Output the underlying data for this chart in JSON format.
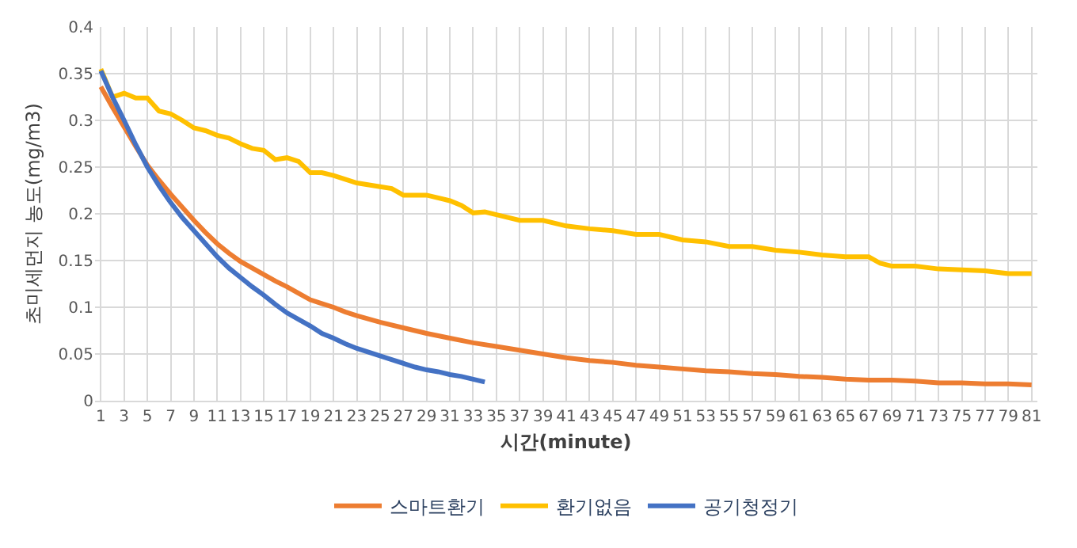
{
  "chart_data": {
    "type": "line",
    "xlabel": "시간(minute)",
    "ylabel": "초미세먼지 농도(mg/m3)",
    "xlim": [
      0.5,
      81.5
    ],
    "xticks": [
      1,
      3,
      5,
      7,
      9,
      11,
      13,
      15,
      17,
      19,
      21,
      23,
      25,
      27,
      29,
      31,
      33,
      35,
      37,
      39,
      41,
      43,
      45,
      47,
      49,
      51,
      53,
      55,
      57,
      59,
      61,
      63,
      65,
      67,
      69,
      71,
      73,
      75,
      77,
      79,
      81
    ],
    "ylim": [
      0,
      0.4
    ],
    "yticks": [
      0,
      0.05,
      0.1,
      0.15,
      0.2,
      0.25,
      0.3,
      0.35,
      0.4
    ],
    "grid": true,
    "legend": "bottom",
    "marker": "none",
    "line_style": "solid",
    "series": [
      {
        "name": "스마트환기",
        "color": "#ed7d31",
        "x": [
          1,
          2,
          3,
          4,
          5,
          6,
          7,
          8,
          9,
          10,
          11,
          12,
          13,
          14,
          15,
          16,
          17,
          18,
          19,
          20,
          21,
          22,
          23,
          25,
          27,
          29,
          31,
          33,
          35,
          37,
          39,
          41,
          43,
          45,
          47,
          49,
          51,
          53,
          55,
          57,
          59,
          61,
          63,
          65,
          67,
          69,
          71,
          73,
          75,
          77,
          79,
          81
        ],
        "values": [
          0.336,
          0.314,
          0.293,
          0.272,
          0.252,
          0.236,
          0.221,
          0.207,
          0.193,
          0.18,
          0.168,
          0.158,
          0.149,
          0.142,
          0.135,
          0.128,
          0.122,
          0.115,
          0.108,
          0.104,
          0.1,
          0.095,
          0.091,
          0.084,
          0.078,
          0.072,
          0.067,
          0.062,
          0.058,
          0.054,
          0.05,
          0.046,
          0.043,
          0.041,
          0.038,
          0.036,
          0.034,
          0.032,
          0.031,
          0.029,
          0.028,
          0.026,
          0.025,
          0.023,
          0.022,
          0.022,
          0.021,
          0.019,
          0.019,
          0.018,
          0.018,
          0.017
        ]
      },
      {
        "name": "환기없음",
        "color": "#ffc000",
        "x": [
          1,
          2,
          3,
          4,
          5,
          6,
          7,
          8,
          9,
          10,
          11,
          12,
          13,
          14,
          15,
          16,
          17,
          18,
          19,
          20,
          21,
          22,
          23,
          25,
          26,
          27,
          29,
          31,
          32,
          33,
          34,
          35,
          37,
          39,
          41,
          43,
          45,
          47,
          49,
          51,
          53,
          55,
          57,
          59,
          61,
          63,
          65,
          67,
          68,
          69,
          71,
          73,
          75,
          77,
          79,
          81
        ],
        "values": [
          0.355,
          0.325,
          0.329,
          0.324,
          0.324,
          0.31,
          0.307,
          0.3,
          0.292,
          0.289,
          0.284,
          0.281,
          0.275,
          0.27,
          0.268,
          0.258,
          0.26,
          0.256,
          0.244,
          0.244,
          0.241,
          0.237,
          0.233,
          0.229,
          0.227,
          0.22,
          0.22,
          0.214,
          0.209,
          0.201,
          0.202,
          0.199,
          0.193,
          0.193,
          0.187,
          0.184,
          0.182,
          0.178,
          0.178,
          0.172,
          0.17,
          0.165,
          0.165,
          0.161,
          0.159,
          0.156,
          0.154,
          0.154,
          0.147,
          0.144,
          0.144,
          0.141,
          0.14,
          0.139,
          0.136,
          0.136
        ]
      },
      {
        "name": "공기청정기",
        "color": "#4472c4",
        "x": [
          1,
          2,
          3,
          4,
          5,
          6,
          7,
          8,
          9,
          10,
          11,
          12,
          13,
          14,
          15,
          16,
          17,
          18,
          19,
          20,
          21,
          22,
          23,
          24,
          25,
          26,
          27,
          28,
          29,
          30,
          31,
          32,
          33,
          34
        ],
        "values": [
          0.353,
          0.325,
          0.3,
          0.274,
          0.25,
          0.23,
          0.212,
          0.196,
          0.182,
          0.168,
          0.154,
          0.142,
          0.132,
          0.122,
          0.113,
          0.103,
          0.094,
          0.087,
          0.08,
          0.072,
          0.067,
          0.061,
          0.056,
          0.052,
          0.048,
          0.044,
          0.04,
          0.036,
          0.033,
          0.031,
          0.028,
          0.026,
          0.023,
          0.02
        ]
      }
    ]
  }
}
